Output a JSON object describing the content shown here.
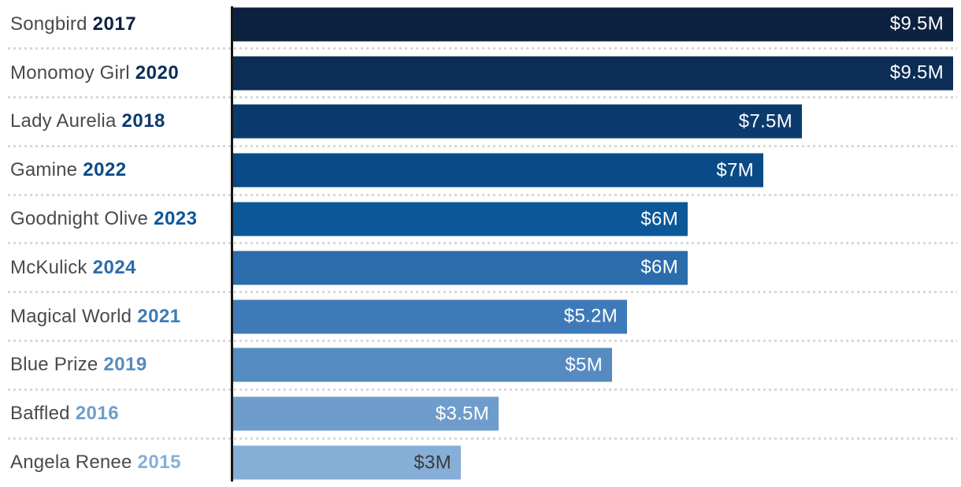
{
  "chart_data": {
    "type": "bar",
    "orientation": "horizontal",
    "title": "",
    "value_axis": {
      "min": 0,
      "max": 9.5,
      "unit_format": "$xM"
    },
    "legend": "none",
    "grid": "dotted row separators",
    "rows": [
      {
        "name": "Songbird",
        "year": "2017",
        "value": 9.5,
        "value_label": "$9.5M",
        "bar_color": "#0d2140",
        "value_text_color": "#ffffff"
      },
      {
        "name": "Monomoy Girl",
        "year": "2020",
        "value": 9.5,
        "value_label": "$9.5M",
        "bar_color": "#0b2d56",
        "value_text_color": "#ffffff"
      },
      {
        "name": "Lady Aurelia",
        "year": "2018",
        "value": 7.5,
        "value_label": "$7.5M",
        "bar_color": "#0b3b6e",
        "value_text_color": "#ffffff"
      },
      {
        "name": "Gamine",
        "year": "2022",
        "value": 7.0,
        "value_label": "$7M",
        "bar_color": "#094a87",
        "value_text_color": "#ffffff"
      },
      {
        "name": "Goodnight Olive",
        "year": "2023",
        "value": 6.0,
        "value_label": "$6M",
        "bar_color": "#0b5798",
        "value_text_color": "#ffffff"
      },
      {
        "name": "McKulick",
        "year": "2024",
        "value": 6.0,
        "value_label": "$6M",
        "bar_color": "#2b6cad",
        "value_text_color": "#ffffff"
      },
      {
        "name": "Magical World",
        "year": "2021",
        "value": 5.2,
        "value_label": "$5.2M",
        "bar_color": "#3e7ab7",
        "value_text_color": "#ffffff"
      },
      {
        "name": "Blue Prize",
        "year": "2019",
        "value": 5.0,
        "value_label": "$5M",
        "bar_color": "#568bc1",
        "value_text_color": "#ffffff"
      },
      {
        "name": "Baffled",
        "year": "2016",
        "value": 3.5,
        "value_label": "$3.5M",
        "bar_color": "#6f9dcb",
        "value_text_color": "#ffffff"
      },
      {
        "name": "Angela Renee",
        "year": "2015",
        "value": 3.0,
        "value_label": "$3M",
        "bar_color": "#86afd7",
        "value_text_color": "#3a3a3c"
      }
    ],
    "colors": {
      "name_text": "#4a4a4c",
      "axis_line": "#161616",
      "separator": "#d8d8d8",
      "background": "#ffffff"
    }
  }
}
